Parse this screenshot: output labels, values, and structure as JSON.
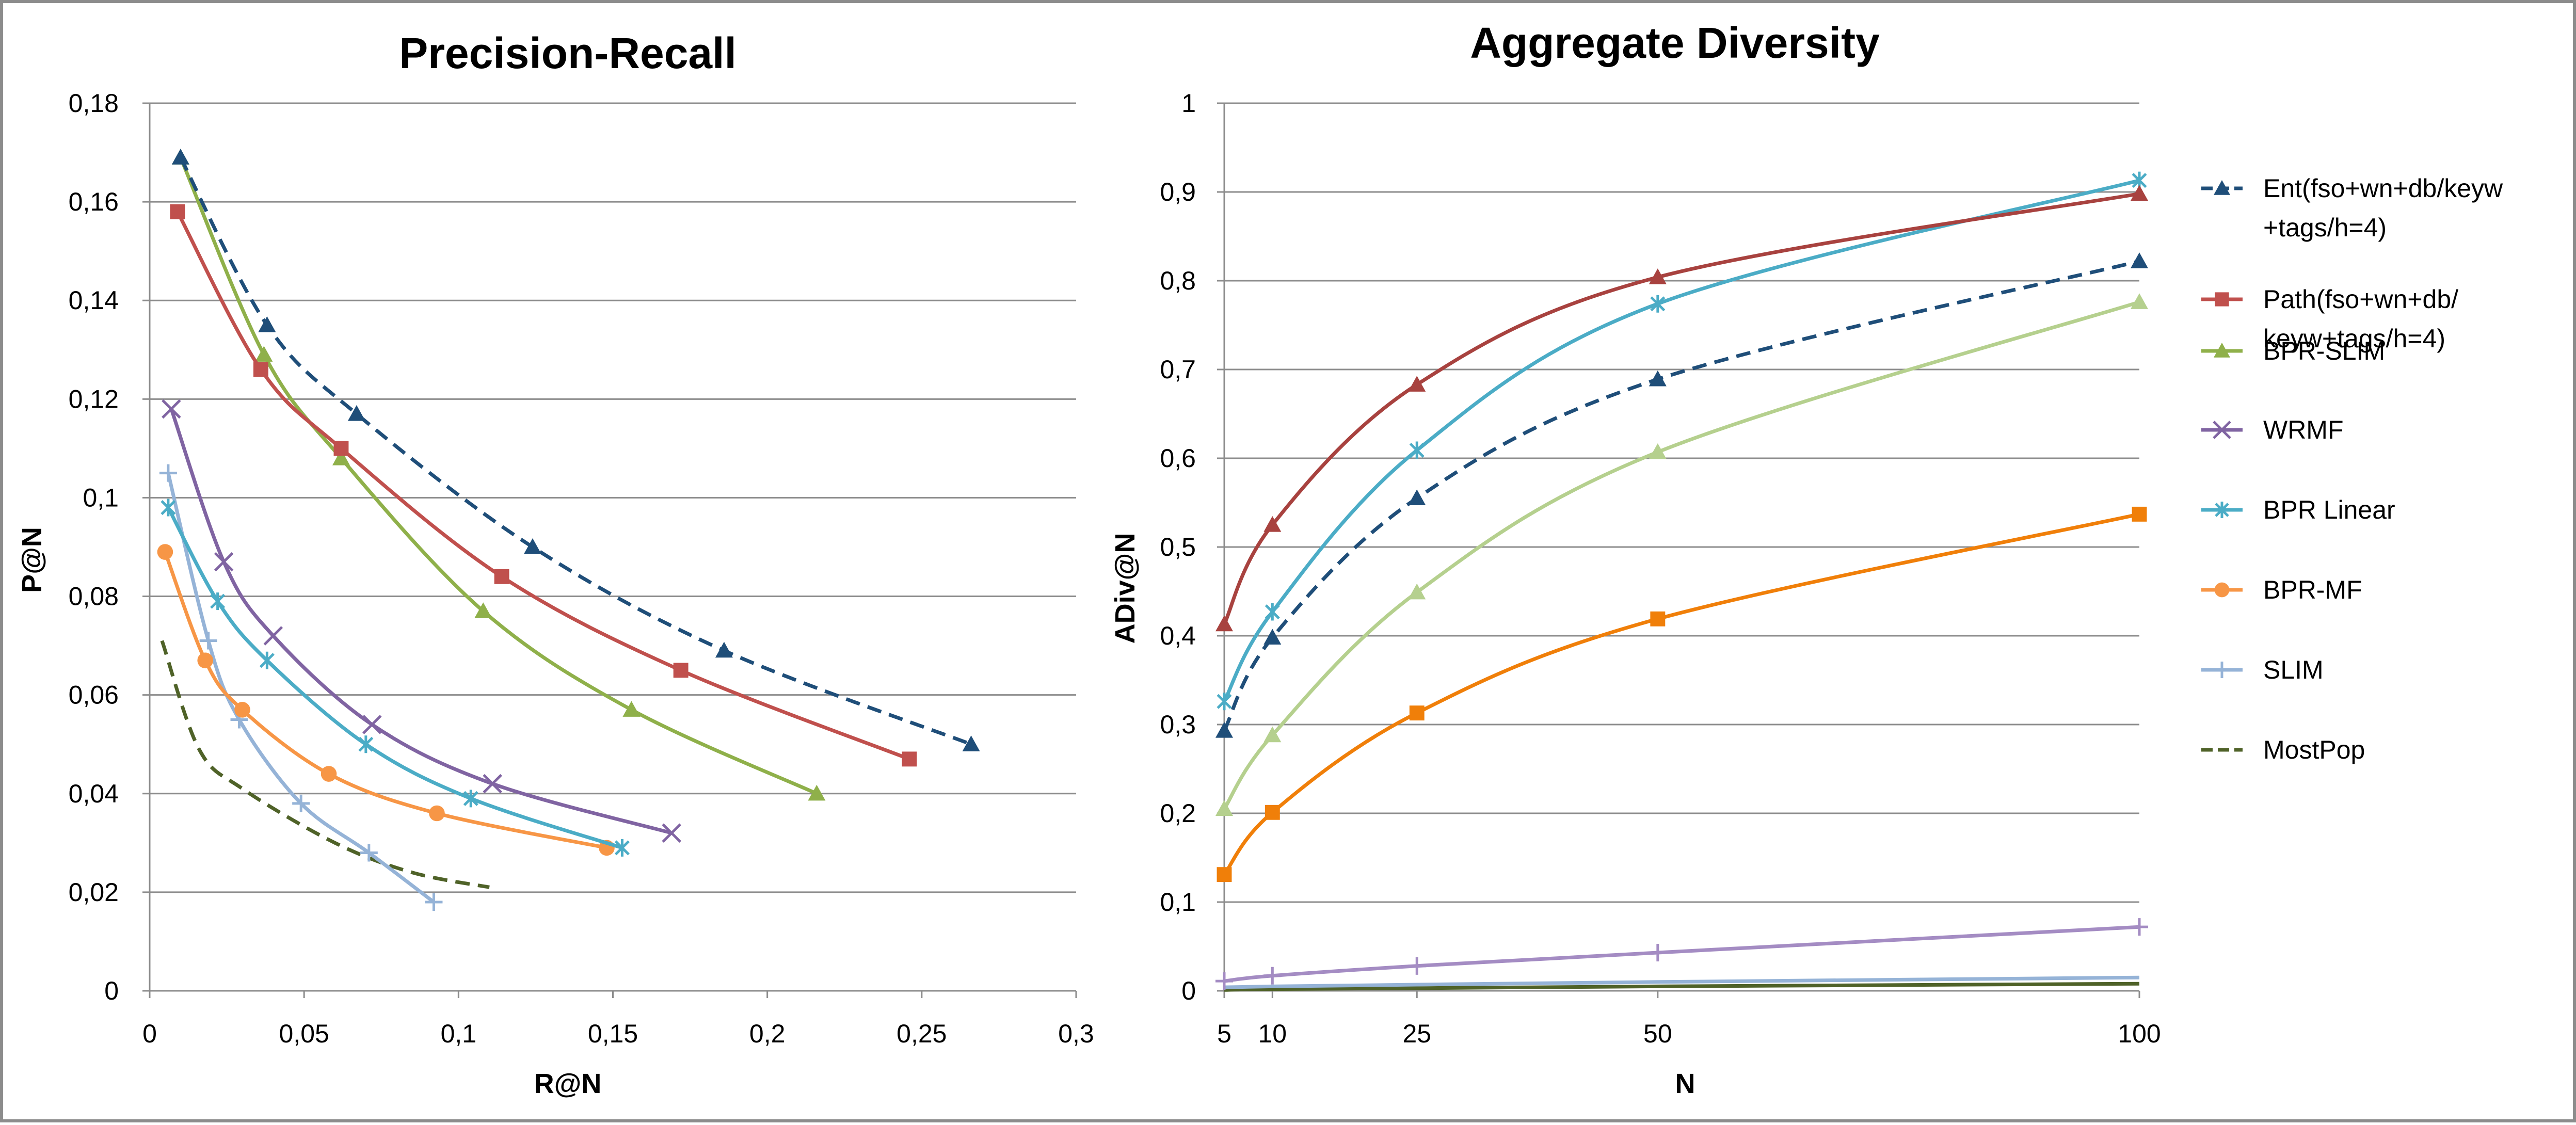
{
  "chart_data": [
    {
      "type": "line",
      "title": "Precision-Recall",
      "xlabel": "R@N",
      "ylabel": "P@N",
      "xlim": [
        0,
        0.3
      ],
      "ylim": [
        0,
        0.18
      ],
      "x_ticks": [
        "0",
        "0,05",
        "0,1",
        "0,15",
        "0,2",
        "0,25",
        "0,3"
      ],
      "y_ticks": [
        "0",
        "0,02",
        "0,04",
        "0,06",
        "0,08",
        "0,1",
        "0,12",
        "0,14",
        "0,16",
        "0,18"
      ],
      "grid": "horizontal",
      "series": [
        {
          "name": "Ent(fso+wn+db/keyw+tags/h=4)",
          "color": "#1f4e79",
          "marker": "triangle",
          "dashed": true,
          "points": [
            [
              0.01,
              0.169
            ],
            [
              0.038,
              0.135
            ],
            [
              0.067,
              0.117
            ],
            [
              0.124,
              0.09
            ],
            [
              0.186,
              0.069
            ],
            [
              0.266,
              0.05
            ]
          ]
        },
        {
          "name": "Path(fso+wn+db/keyw+tags/h=4)",
          "color": "#c0504d",
          "marker": "square",
          "dashed": false,
          "points": [
            [
              0.009,
              0.158
            ],
            [
              0.036,
              0.126
            ],
            [
              0.062,
              0.11
            ],
            [
              0.114,
              0.084
            ],
            [
              0.172,
              0.065
            ],
            [
              0.246,
              0.047
            ]
          ]
        },
        {
          "name": "BPR-SLIM",
          "color": "#8fb04a",
          "marker": "triangle",
          "dashed": false,
          "points": [
            [
              0.01,
              0.169
            ],
            [
              0.037,
              0.129
            ],
            [
              0.062,
              0.108
            ],
            [
              0.108,
              0.077
            ],
            [
              0.156,
              0.057
            ],
            [
              0.216,
              0.04
            ]
          ]
        },
        {
          "name": "WRMF",
          "color": "#8064a2",
          "marker": "x",
          "dashed": false,
          "points": [
            [
              0.007,
              0.118
            ],
            [
              0.024,
              0.087
            ],
            [
              0.04,
              0.072
            ],
            [
              0.072,
              0.054
            ],
            [
              0.111,
              0.042
            ],
            [
              0.169,
              0.032
            ]
          ]
        },
        {
          "name": "BPR Linear",
          "color": "#4bacc6",
          "marker": "star",
          "dashed": false,
          "points": [
            [
              0.006,
              0.098
            ],
            [
              0.022,
              0.079
            ],
            [
              0.038,
              0.067
            ],
            [
              0.07,
              0.05
            ],
            [
              0.104,
              0.039
            ],
            [
              0.153,
              0.029
            ]
          ]
        },
        {
          "name": "BPR-MF",
          "color": "#f79646",
          "marker": "circle",
          "dashed": false,
          "points": [
            [
              0.005,
              0.089
            ],
            [
              0.018,
              0.067
            ],
            [
              0.03,
              0.057
            ],
            [
              0.058,
              0.044
            ],
            [
              0.093,
              0.036
            ],
            [
              0.148,
              0.029
            ]
          ]
        },
        {
          "name": "SLIM",
          "color": "#95b3d7",
          "marker": "plus",
          "dashed": false,
          "points": [
            [
              0.006,
              0.105
            ],
            [
              0.019,
              0.071
            ],
            [
              0.029,
              0.055
            ],
            [
              0.049,
              0.038
            ],
            [
              0.071,
              0.028
            ],
            [
              0.092,
              0.018
            ]
          ]
        },
        {
          "name": "MostPop",
          "color": "#4f6228",
          "marker": "none",
          "dashed": true,
          "points": [
            [
              0.004,
              0.071
            ],
            [
              0.016,
              0.049
            ],
            [
              0.03,
              0.041
            ],
            [
              0.06,
              0.03
            ],
            [
              0.085,
              0.024
            ],
            [
              0.11,
              0.021
            ]
          ]
        }
      ]
    },
    {
      "type": "line",
      "title": "Aggregate Diversity",
      "xlabel": "N",
      "ylabel": "ADiv@N",
      "xlim": [
        5,
        100
      ],
      "ylim": [
        0,
        1
      ],
      "x_ticks": [
        "5",
        "10",
        "25",
        "50",
        "100"
      ],
      "y_ticks": [
        "0",
        "0,1",
        "0,2",
        "0,3",
        "0,4",
        "0,5",
        "0,6",
        "0,7",
        "0,8",
        "0,9",
        "1"
      ],
      "grid": "horizontal",
      "x": [
        5,
        10,
        25,
        50,
        100
      ],
      "series": [
        {
          "name": "Ent(fso+wn+db/keyw+tags/h=4)",
          "color": "#1f4e79",
          "marker": "triangle",
          "dashed": true,
          "values": [
            0.293,
            0.398,
            0.555,
            0.689,
            0.822
          ]
        },
        {
          "name": "Path(fso+wn+db/keyw+tags/h=4)",
          "color": "#a8423f",
          "marker": "triangle",
          "dashed": false,
          "values": [
            0.413,
            0.525,
            0.683,
            0.804,
            0.898
          ]
        },
        {
          "name": "BPR-SLIM",
          "color": "#b5d08e",
          "marker": "triangle",
          "dashed": false,
          "values": [
            0.205,
            0.288,
            0.449,
            0.607,
            0.776
          ]
        },
        {
          "name": "WRMF",
          "color": "#a48cc3",
          "marker": "plus",
          "dashed": false,
          "values": [
            0.011,
            0.017,
            0.028,
            0.043,
            0.072
          ]
        },
        {
          "name": "BPR Linear",
          "color": "#4bacc6",
          "marker": "star",
          "dashed": false,
          "values": [
            0.326,
            0.427,
            0.609,
            0.774,
            0.913
          ]
        },
        {
          "name": "BPR-MF",
          "color": "#f07f09",
          "marker": "square",
          "dashed": false,
          "values": [
            0.131,
            0.201,
            0.313,
            0.419,
            0.537
          ]
        },
        {
          "name": "SLIM",
          "color": "#95b3d7",
          "marker": "none",
          "dashed": false,
          "values": [
            0.004,
            0.005,
            0.007,
            0.01,
            0.015
          ]
        },
        {
          "name": "MostPop",
          "color": "#4f6228",
          "marker": "none",
          "dashed": false,
          "values": [
            0.001,
            0.002,
            0.003,
            0.005,
            0.008
          ]
        }
      ]
    }
  ],
  "legend": {
    "placement": "right",
    "items": [
      {
        "lines": [
          "Ent(fso+wn+db/keyw",
          "+tags/h=4)"
        ],
        "color": "#1f4e79",
        "marker": "triangle",
        "dashed": true
      },
      {
        "lines": [
          "Path(fso+wn+db/",
          "keyw+tags/h=4)"
        ],
        "color": "#c0504d",
        "marker": "square",
        "dashed": false
      },
      {
        "lines": [
          "BPR-SLIM"
        ],
        "color": "#8fb04a",
        "marker": "triangle",
        "dashed": false
      },
      {
        "lines": [
          "WRMF"
        ],
        "color": "#8064a2",
        "marker": "x",
        "dashed": false
      },
      {
        "lines": [
          "BPR Linear"
        ],
        "color": "#4bacc6",
        "marker": "star",
        "dashed": false
      },
      {
        "lines": [
          "BPR-MF"
        ],
        "color": "#f79646",
        "marker": "circle",
        "dashed": false
      },
      {
        "lines": [
          "SLIM"
        ],
        "color": "#95b3d7",
        "marker": "plus",
        "dashed": false
      },
      {
        "lines": [
          "MostPop"
        ],
        "color": "#4f6228",
        "marker": "none",
        "dashed": true
      }
    ]
  }
}
